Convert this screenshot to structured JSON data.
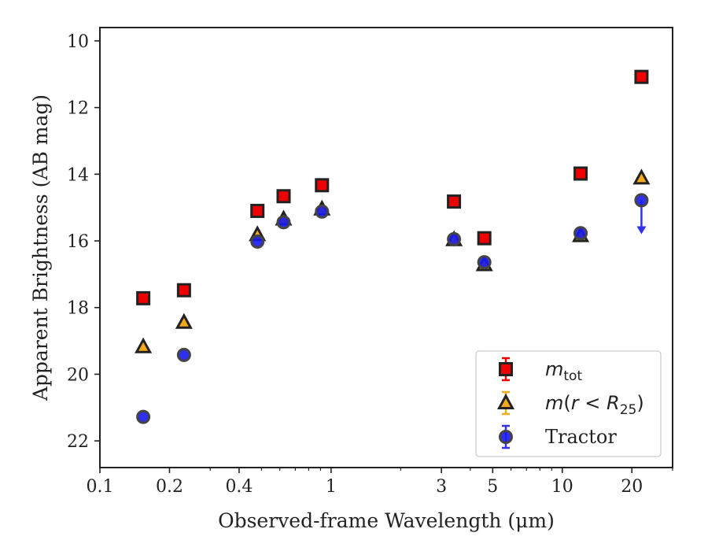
{
  "chart_data": {
    "type": "scatter",
    "xlabel": "Observed-frame Wavelength (μm)",
    "ylabel": "Apparent Brightness (AB mag)",
    "xscale": "log",
    "xlim": [
      0.1,
      30
    ],
    "ylim": [
      22.8,
      9.6
    ],
    "y_inverted": true,
    "x_ticks": [
      0.1,
      0.2,
      0.4,
      1,
      3,
      5,
      10,
      20
    ],
    "x_tick_labels": [
      "0.1",
      "0.2",
      "0.4",
      "1",
      "3",
      "5",
      "10",
      "20"
    ],
    "y_ticks": [
      10,
      12,
      14,
      16,
      18,
      20,
      22
    ],
    "y_tick_labels": [
      "10",
      "12",
      "14",
      "16",
      "18",
      "20",
      "22"
    ],
    "grid": false,
    "legend_position": "lower-right",
    "series": [
      {
        "name": "m_tot",
        "legend_label": "mtot",
        "marker": "square",
        "color": "#ee0000",
        "edge_color": "#222222",
        "points": [
          {
            "x": 0.154,
            "y": 17.72
          },
          {
            "x": 0.231,
            "y": 17.48
          },
          {
            "x": 0.48,
            "y": 15.1
          },
          {
            "x": 0.623,
            "y": 14.66
          },
          {
            "x": 0.913,
            "y": 14.33
          },
          {
            "x": 3.4,
            "y": 14.82
          },
          {
            "x": 4.6,
            "y": 15.92
          },
          {
            "x": 12.0,
            "y": 13.98
          },
          {
            "x": 22.0,
            "y": 11.08
          }
        ]
      },
      {
        "name": "m(r < R_25)",
        "legend_label": "m(r < R25)",
        "marker": "triangle",
        "color": "#f2a91b",
        "edge_color": "#222222",
        "points": [
          {
            "x": 0.154,
            "y": 19.18
          },
          {
            "x": 0.231,
            "y": 18.45
          },
          {
            "x": 0.48,
            "y": 15.82
          },
          {
            "x": 0.623,
            "y": 15.35
          },
          {
            "x": 0.913,
            "y": 15.05
          },
          {
            "x": 3.4,
            "y": 15.97
          },
          {
            "x": 4.6,
            "y": 16.72
          },
          {
            "x": 12.0,
            "y": 15.85
          },
          {
            "x": 22.0,
            "y": 14.12
          }
        ]
      },
      {
        "name": "Tractor",
        "legend_label": "Tractor",
        "marker": "circle",
        "color": "#1a1aee",
        "edge_color": "#444444",
        "points": [
          {
            "x": 0.154,
            "y": 21.28
          },
          {
            "x": 0.231,
            "y": 19.42
          },
          {
            "x": 0.48,
            "y": 16.02
          },
          {
            "x": 0.623,
            "y": 15.44
          },
          {
            "x": 0.913,
            "y": 15.12
          },
          {
            "x": 3.4,
            "y": 15.95
          },
          {
            "x": 4.6,
            "y": 16.64
          },
          {
            "x": 12.0,
            "y": 15.77
          },
          {
            "x": 22.0,
            "y": 14.78,
            "upper_limit": true,
            "limit_to": 15.75
          }
        ]
      }
    ]
  }
}
